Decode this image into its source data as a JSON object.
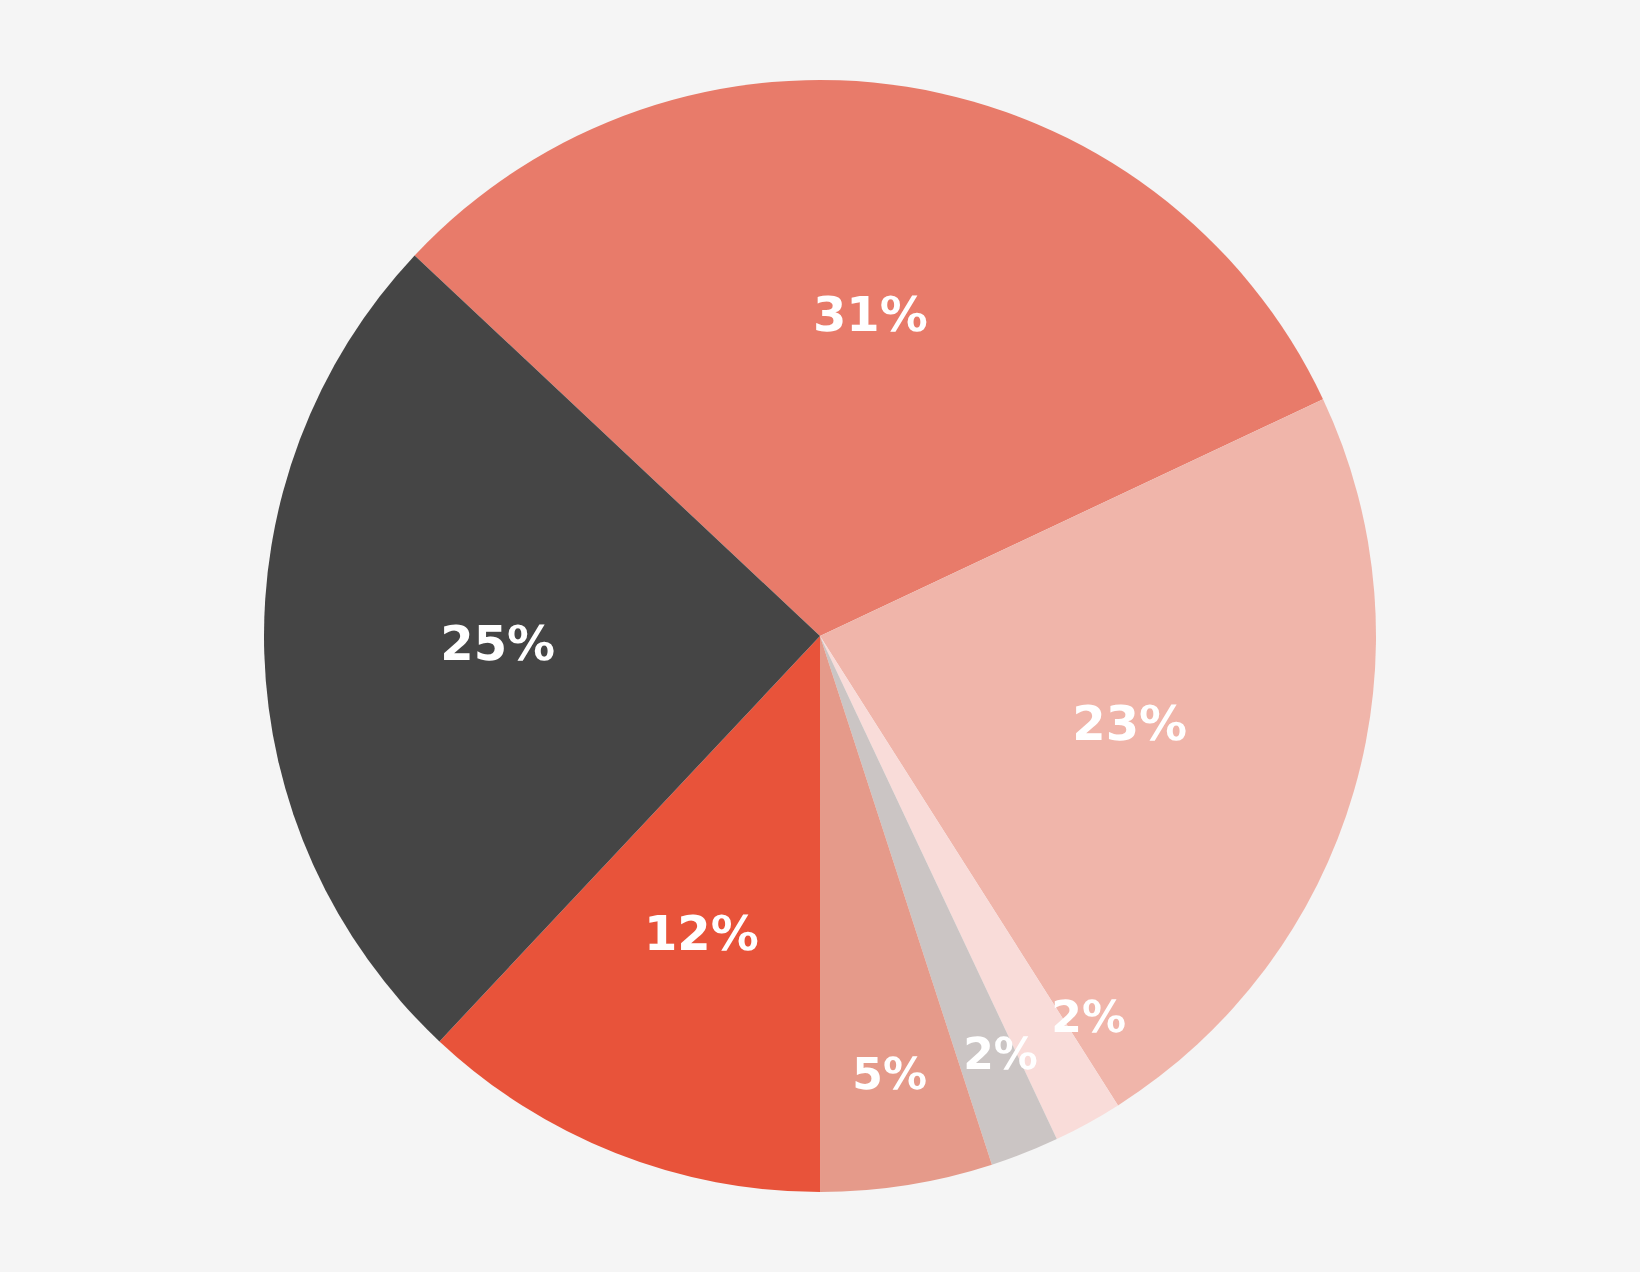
{
  "chart_data": {
    "type": "pie",
    "categories": [
      null,
      null,
      null,
      null,
      null,
      null,
      null
    ],
    "values": [
      31,
      23,
      2,
      2,
      5,
      12,
      25
    ],
    "colors": [
      "#e87b6a",
      "#f0b5aa",
      "#f9dcd9",
      "#cbc5c4",
      "#e59a8a",
      "#e8533a",
      "#454545"
    ],
    "value_labels": [
      "31%",
      "23%",
      "2%",
      "2%",
      "5%",
      "12%",
      "25%"
    ]
  }
}
